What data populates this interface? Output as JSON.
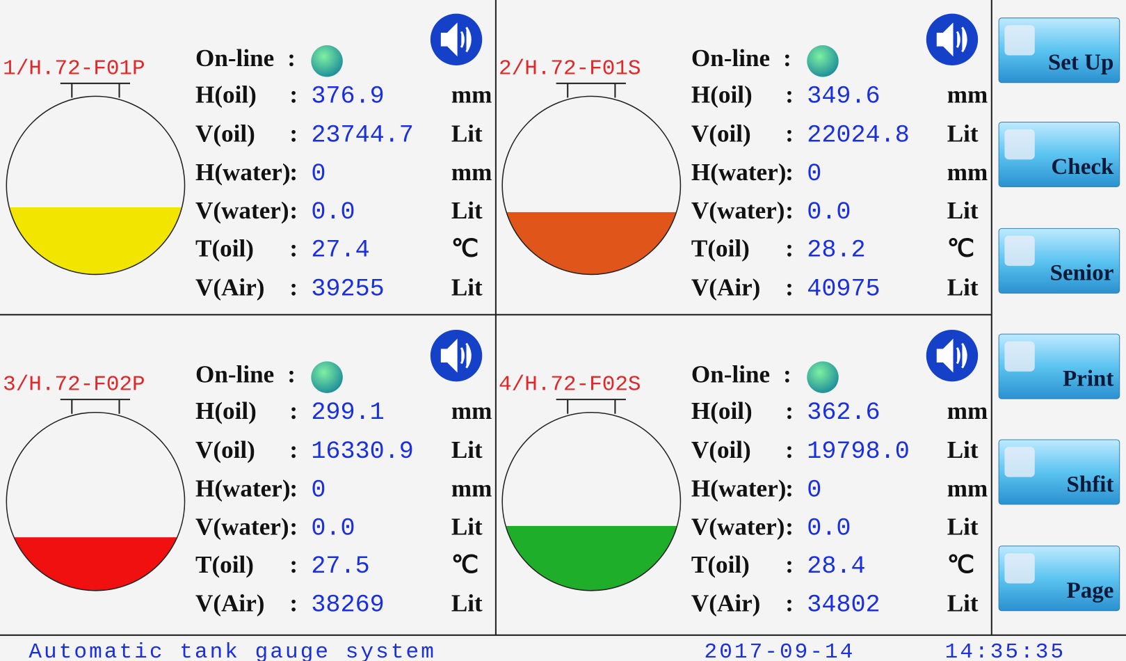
{
  "tanks": [
    {
      "name": "1/H.72-F01P",
      "status_label": "On-line",
      "fill_color": "#f2e600",
      "rows": [
        {
          "label": "H(oil)",
          "value": "376.9",
          "unit": "mm"
        },
        {
          "label": "V(oil)",
          "value": "23744.7",
          "unit": "Lit"
        },
        {
          "label": "H(water)",
          "value": "0",
          "unit": "mm"
        },
        {
          "label": "V(water)",
          "value": "0.0",
          "unit": "Lit"
        },
        {
          "label": "T(oil)",
          "value": "27.4",
          "unit": "℃"
        },
        {
          "label": "V(Air)",
          "value": "39255",
          "unit": "Lit"
        }
      ]
    },
    {
      "name": "2/H.72-F01S",
      "status_label": "On-line",
      "fill_color": "#e0561a",
      "rows": [
        {
          "label": "H(oil)",
          "value": "349.6",
          "unit": "mm"
        },
        {
          "label": "V(oil)",
          "value": "22024.8",
          "unit": "Lit"
        },
        {
          "label": "H(water)",
          "value": "0",
          "unit": "mm"
        },
        {
          "label": "V(water)",
          "value": "0.0",
          "unit": "Lit"
        },
        {
          "label": "T(oil)",
          "value": "28.2",
          "unit": "℃"
        },
        {
          "label": "V(Air)",
          "value": "40975",
          "unit": "Lit"
        }
      ]
    },
    {
      "name": "3/H.72-F02P",
      "status_label": "On-line",
      "fill_color": "#f01010",
      "rows": [
        {
          "label": "H(oil)",
          "value": "299.1",
          "unit": "mm"
        },
        {
          "label": "V(oil)",
          "value": "16330.9",
          "unit": "Lit"
        },
        {
          "label": "H(water)",
          "value": "0",
          "unit": "mm"
        },
        {
          "label": "V(water)",
          "value": "0.0",
          "unit": "Lit"
        },
        {
          "label": "T(oil)",
          "value": "27.5",
          "unit": "℃"
        },
        {
          "label": "V(Air)",
          "value": "38269",
          "unit": "Lit"
        }
      ]
    },
    {
      "name": "4/H.72-F02S",
      "status_label": "On-line",
      "fill_color": "#1fae2a",
      "rows": [
        {
          "label": "H(oil)",
          "value": "362.6",
          "unit": "mm"
        },
        {
          "label": "V(oil)",
          "value": "19798.0",
          "unit": "Lit"
        },
        {
          "label": "H(water)",
          "value": "0",
          "unit": "mm"
        },
        {
          "label": "V(water)",
          "value": "0.0",
          "unit": "Lit"
        },
        {
          "label": "T(oil)",
          "value": "28.4",
          "unit": "℃"
        },
        {
          "label": "V(Air)",
          "value": "34802",
          "unit": "Lit"
        }
      ]
    }
  ],
  "separator": ":",
  "buttons": [
    "Set Up",
    "Check",
    "Senior",
    "Print",
    "Shfit",
    "Page"
  ],
  "footer": {
    "title": "Automatic tank gauge system",
    "date": "2017-09-14",
    "time": "14:35:35"
  }
}
